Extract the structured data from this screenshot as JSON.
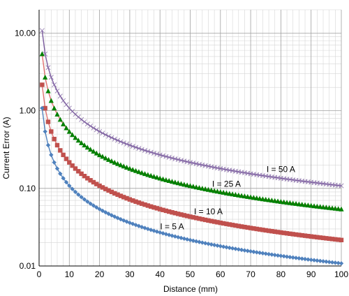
{
  "chart_data": {
    "type": "scatter",
    "title": "",
    "xlabel": "Distance (mm)",
    "ylabel": "Current Error (A)",
    "xlim": [
      0,
      100
    ],
    "ylim": [
      0.01,
      20
    ],
    "yscale": "log",
    "grid": true,
    "x_ticks": [
      "0",
      "10",
      "20",
      "30",
      "40",
      "50",
      "60",
      "70",
      "80",
      "90",
      "100"
    ],
    "y_ticks": [
      {
        "value": 0.01,
        "label": "0.01"
      },
      {
        "value": 0.1,
        "label": "0.10"
      },
      {
        "value": 1,
        "label": "1.00"
      },
      {
        "value": 10,
        "label": "10.00"
      }
    ],
    "x_start": 1,
    "x_end": 100,
    "x_step": 1,
    "series": [
      {
        "name": "I = 50 A",
        "coefficient": 10.8,
        "marker": "x-mark",
        "color": "#8064a2",
        "fit_color": "#7a5a9e"
      },
      {
        "name": "I = 25 A",
        "coefficient": 5.4,
        "marker": "triangle",
        "color": "#008000",
        "fit_color": "#e07070"
      },
      {
        "name": "I = 10 A",
        "coefficient": 2.16,
        "marker": "square",
        "color": "#c0504d",
        "fit_color": "#e07070"
      },
      {
        "name": "I = 5 A",
        "coefficient": 1.08,
        "marker": "diamond",
        "color": "#4f81bd",
        "fit_color": "#4f81bd"
      }
    ],
    "label_anchor_x": [
      80,
      62,
      56,
      44
    ]
  }
}
